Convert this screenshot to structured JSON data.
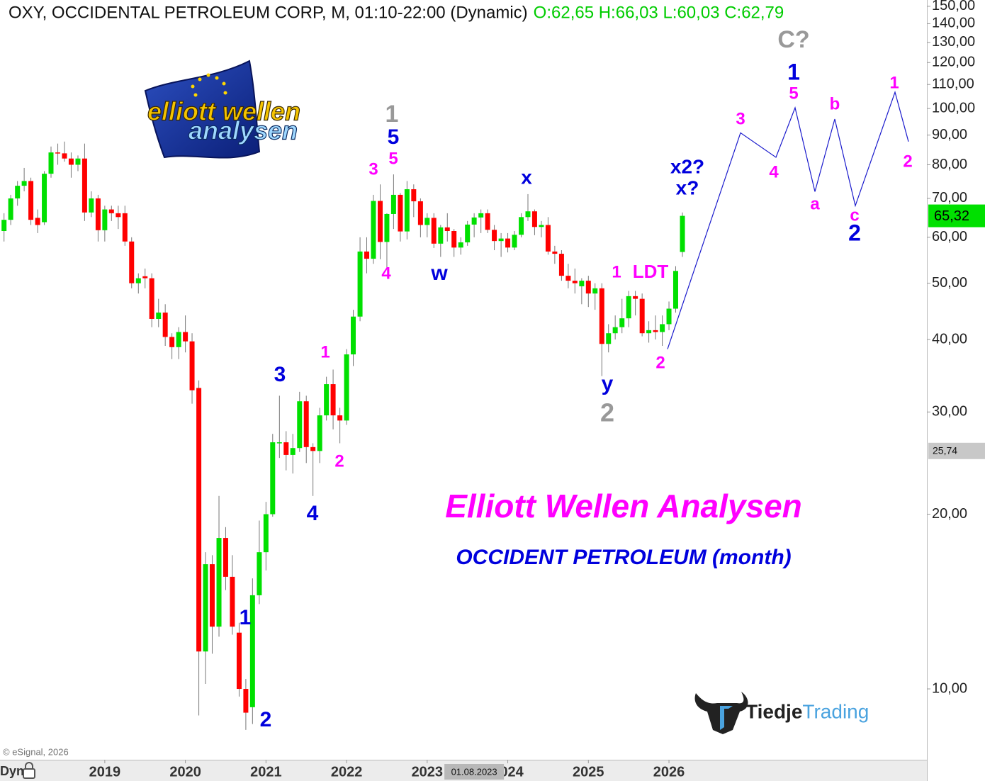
{
  "chart_data": {
    "type": "candlestick",
    "title": "OXY, OCCIDENTAL PETROLEUM CORP, M, 01:10-22:00 (Dynamic)",
    "legend_ohlc": "O:62,65 H:66,03 L:60,03 C:62,79",
    "log_y": true,
    "up_color": "#00e000",
    "down_color": "#ff0000",
    "x": [
      2017.75,
      2017.833,
      2017.917,
      2018.0,
      2018.083,
      2018.167,
      2018.25,
      2018.333,
      2018.417,
      2018.5,
      2018.583,
      2018.667,
      2018.75,
      2018.833,
      2018.917,
      2019.0,
      2019.083,
      2019.167,
      2019.25,
      2019.333,
      2019.417,
      2019.5,
      2019.583,
      2019.667,
      2019.75,
      2019.833,
      2019.917,
      2020.0,
      2020.083,
      2020.167,
      2020.25,
      2020.333,
      2020.417,
      2020.5,
      2020.583,
      2020.667,
      2020.75,
      2020.833,
      2020.917,
      2021.0,
      2021.083,
      2021.167,
      2021.25,
      2021.333,
      2021.417,
      2021.5,
      2021.583,
      2021.667,
      2021.75,
      2021.833,
      2021.917,
      2022.0,
      2022.083,
      2022.167,
      2022.25,
      2022.333,
      2022.417,
      2022.5,
      2022.583,
      2022.667,
      2022.75,
      2022.833,
      2022.917,
      2023.0,
      2023.083,
      2023.167,
      2023.25,
      2023.333,
      2023.417,
      2023.5,
      2023.583,
      2023.667,
      2023.75,
      2023.833,
      2023.917,
      2024.0,
      2024.083,
      2024.167,
      2024.25,
      2024.333,
      2024.417,
      2024.5,
      2024.583,
      2024.667,
      2024.75,
      2024.833,
      2024.917,
      2025.0,
      2025.083,
      2025.167,
      2025.25,
      2025.333,
      2025.417,
      2025.5,
      2025.583,
      2025.667,
      2025.75,
      2025.833,
      2025.917,
      2026.0,
      2026.083,
      2026.167
    ],
    "open": [
      61.5,
      64.3,
      70,
      73.6,
      75,
      64.8,
      63.7,
      77.2,
      84,
      83.7,
      82,
      80,
      82,
      66.2,
      70,
      61.7,
      67,
      66,
      66,
      59,
      50,
      51.4,
      51,
      43.4,
      44.5,
      40.4,
      38.8,
      41.2,
      39.7,
      33,
      11.6,
      16.4,
      12.8,
      18.2,
      15.6,
      12.5,
      10,
      9.3,
      14.5,
      17.2,
      20,
      26.5,
      26.6,
      25.3,
      26,
      31.3,
      26.1,
      25.7,
      29.6,
      33.5,
      29.6,
      29,
      37.7,
      43.8,
      56.7,
      55.1,
      69.3,
      58.9,
      65.8,
      71,
      61.4,
      72.6,
      69.2,
      63,
      64.8,
      58.5,
      62.4,
      61.5,
      57.6,
      58.8,
      63.1,
      64.9,
      66,
      61.8,
      59.1,
      59.7,
      57.6,
      60.6,
      65,
      66.5,
      62.5,
      63,
      56.7,
      56.2,
      51.5,
      50.5,
      49.4,
      50.5,
      48,
      49,
      39.3,
      41,
      42,
      43.5,
      47.5,
      47,
      41,
      41.5,
      41.2,
      42.5,
      45.2,
      56.6
    ],
    "high": [
      66,
      71,
      75,
      79,
      76,
      67,
      78,
      86,
      87,
      87.7,
      84,
      83,
      87,
      72,
      71,
      68,
      68,
      68,
      68,
      60,
      52,
      53,
      52,
      47,
      46,
      41,
      42,
      44,
      41,
      34,
      17.2,
      17,
      21.5,
      19,
      17,
      13,
      10.4,
      15.5,
      19.5,
      21,
      27.5,
      32,
      27.8,
      27.5,
      32.5,
      32,
      26.5,
      30.5,
      34.5,
      35.5,
      30.5,
      38.5,
      45,
      60,
      60,
      71,
      74,
      66,
      77,
      71.5,
      75,
      74,
      70,
      66,
      66,
      63,
      66,
      62,
      60,
      64,
      66,
      67,
      67,
      63,
      61,
      61,
      61.5,
      66,
      71.2,
      67,
      64,
      65,
      58,
      57,
      54,
      53,
      51,
      51.5,
      50,
      50,
      42.5,
      44,
      47,
      48.5,
      48.5,
      48,
      43,
      44,
      44,
      46.5,
      53.5,
      66.2
    ],
    "low": [
      59,
      63,
      68,
      72,
      63,
      61,
      63,
      76,
      80,
      81,
      76,
      78,
      64,
      65,
      59,
      59,
      64,
      62,
      58,
      49,
      48,
      49,
      42,
      42,
      39,
      37,
      37,
      38,
      31,
      9,
      10.2,
      11.5,
      12.3,
      14.8,
      12.4,
      9.7,
      8.5,
      8.7,
      14,
      16,
      19.8,
      25,
      23.8,
      23.5,
      25.6,
      24.5,
      21.5,
      24.5,
      29,
      28,
      26.5,
      28.5,
      36,
      43,
      52,
      54,
      55,
      53,
      62,
      59,
      59.5,
      65,
      60,
      60,
      57.5,
      55.5,
      59,
      55.5,
      56,
      58,
      60,
      61,
      61,
      57,
      55.5,
      56.5,
      57,
      60,
      64,
      60.5,
      60,
      56,
      54,
      50.5,
      49,
      48,
      46,
      45.5,
      45,
      34.6,
      38,
      40,
      41,
      42,
      44,
      40.5,
      39.5,
      40,
      39,
      41.5,
      44.5,
      55.5
    ],
    "close": [
      64.3,
      70,
      73.6,
      75,
      64.3,
      63,
      77.2,
      84,
      83.7,
      82,
      80,
      82,
      66.2,
      70,
      61.7,
      67,
      66,
      65,
      59,
      50,
      51,
      51,
      43.4,
      44.5,
      40.4,
      38.8,
      41.2,
      39.7,
      32.7,
      11.6,
      16.4,
      12.8,
      18.2,
      15.6,
      12.8,
      10,
      9.1,
      14.5,
      17.2,
      20,
      26.6,
      26.6,
      25.3,
      26,
      31.3,
      26.1,
      25.7,
      29.6,
      33.5,
      29.6,
      29,
      37.7,
      43.8,
      56.7,
      55.1,
      69.3,
      58.9,
      65.8,
      71,
      61.4,
      72.6,
      69.2,
      63,
      64.8,
      58.5,
      62.4,
      61.5,
      57.6,
      58.8,
      63.1,
      64.9,
      66,
      61.8,
      59.1,
      59.7,
      57.6,
      60.6,
      65,
      66.5,
      62.5,
      63,
      56.7,
      56.2,
      51.5,
      50.5,
      50,
      50.5,
      48,
      49,
      39.3,
      41,
      42,
      43.5,
      47.5,
      47,
      41,
      41.5,
      41.2,
      42.5,
      45.2,
      52.5,
      65.32
    ],
    "xlim": [
      2017.7,
      2029.2
    ],
    "ylim": [
      7.55,
      153.8
    ],
    "xticks": [
      2019,
      2020,
      2021,
      2022,
      2023,
      2024,
      2025,
      2026
    ],
    "yticks": [
      {
        "value": 10,
        "label": "10,00"
      },
      {
        "value": 20,
        "label": "20,00"
      },
      {
        "value": 30,
        "label": "30,00"
      },
      {
        "value": 40,
        "label": "40,00"
      },
      {
        "value": 50,
        "label": "50,00"
      },
      {
        "value": 60,
        "label": "60,00"
      },
      {
        "value": 70,
        "label": "70,00"
      },
      {
        "value": 80,
        "label": "80,00"
      },
      {
        "value": 90,
        "label": "90,00"
      },
      {
        "value": 100,
        "label": "100,00"
      },
      {
        "value": 110,
        "label": "110,00"
      },
      {
        "value": 120,
        "label": "120,00"
      },
      {
        "value": 130,
        "label": "130,00"
      },
      {
        "value": 140,
        "label": "140,00"
      },
      {
        "value": 150,
        "label": "150,00"
      }
    ],
    "last_price": {
      "value": 65.32,
      "label": "65,32",
      "color": "#00e000"
    },
    "crosshair_price": {
      "value": 25.74,
      "label": "25,74"
    },
    "crosshair_date": {
      "x": 2023.583,
      "label": "01.08.2023"
    },
    "projection": {
      "color": "#1a1acc",
      "x": [
        2025.982,
        2026.888,
        2027.327,
        2027.565,
        2027.811,
        2028.057,
        2028.312,
        2028.804,
        2028.971
      ],
      "y": [
        38.5,
        90.8,
        82.4,
        100.3,
        71.9,
        95.9,
        68.0,
        106.7,
        87.7
      ]
    },
    "annotations": [
      {
        "text": "1",
        "color": "#999999"
      },
      {
        "text": "5",
        "color": "#0000dd"
      },
      {
        "text": "5",
        "color": "#ff00ff"
      },
      {
        "text": "3",
        "color": "#ff00ff"
      },
      {
        "text": "4",
        "color": "#ff00ff"
      },
      {
        "text": "w",
        "color": "#0000dd"
      },
      {
        "text": "x",
        "color": "#0000dd"
      },
      {
        "text": "x2?",
        "color": "#0000dd"
      },
      {
        "text": "x?",
        "color": "#0000dd"
      },
      {
        "text": "1",
        "color": "#ff00ff"
      },
      {
        "text": "LDT",
        "color": "#ff00ff"
      },
      {
        "text": "2",
        "color": "#ff00ff"
      },
      {
        "text": "y",
        "color": "#0000dd"
      },
      {
        "text": "2",
        "color": "#999999"
      },
      {
        "text": "3",
        "color": "#0000dd"
      },
      {
        "text": "1",
        "color": "#ff00ff"
      },
      {
        "text": "2",
        "color": "#ff00ff"
      },
      {
        "text": "4",
        "color": "#0000dd"
      },
      {
        "text": "1",
        "color": "#0000dd"
      },
      {
        "text": "2",
        "color": "#0000dd"
      },
      {
        "text": "C?",
        "color": "#999999"
      },
      {
        "text": "1",
        "color": "#0000dd"
      },
      {
        "text": "5",
        "color": "#ff00ff"
      },
      {
        "text": "3",
        "color": "#ff00ff"
      },
      {
        "text": "4",
        "color": "#ff00ff"
      },
      {
        "text": "b",
        "color": "#ff00ff"
      },
      {
        "text": "a",
        "color": "#ff00ff"
      },
      {
        "text": "c",
        "color": "#ff00ff"
      },
      {
        "text": "2",
        "color": "#0000dd"
      },
      {
        "text": "1",
        "color": "#ff00ff"
      },
      {
        "text": "2",
        "color": "#ff00ff"
      }
    ],
    "watermark": "Elliott Wellen Analysen",
    "subtitle": "OCCIDENT PETROLEUM (month)",
    "logo": {
      "line1": "elliott wellen",
      "line2": "analysen"
    },
    "brand": {
      "part1": "Tiedje",
      "part2": "Trading"
    },
    "copyright": "© eSignal, 2026",
    "mode": "Dyn"
  }
}
